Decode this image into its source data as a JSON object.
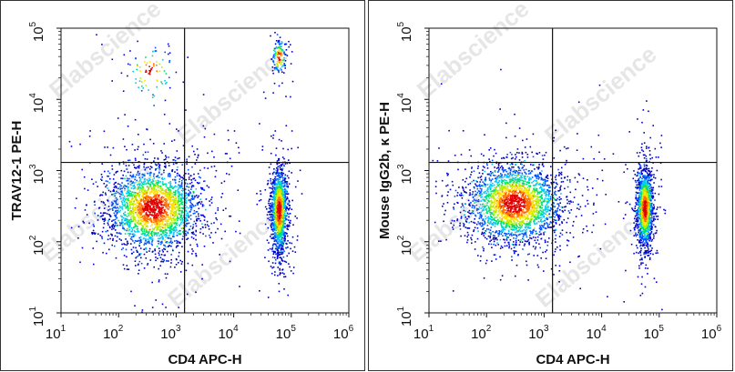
{
  "chart_data": [
    {
      "type": "scatter",
      "xlabel": "CD4 APC-H",
      "ylabel": "TRAV12-1 PE-H",
      "x_scale": "log",
      "y_scale": "log",
      "xlim": [
        10,
        1000000
      ],
      "ylim": [
        10,
        100000
      ],
      "x_ticks": [
        10,
        100,
        1000,
        10000,
        100000,
        1000000
      ],
      "y_ticks": [
        10,
        100,
        1000,
        10000,
        100000
      ],
      "quadrant_gate": {
        "x": 1400,
        "y": 1300
      },
      "watermark": "Elabscience",
      "populations": [
        {
          "name": "",
          "x_center": 400,
          "y_center": 300,
          "x_spread_decades": 0.42,
          "y_spread_decades": 0.3,
          "events": 2600
        },
        {
          "name": "",
          "x_center": 60000,
          "y_center": 280,
          "x_spread_decades": 0.07,
          "y_spread_decades": 0.3,
          "events": 1500
        },
        {
          "name": "",
          "x_center": 60000,
          "y_center": 40000,
          "x_spread_decades": 0.06,
          "y_spread_decades": 0.12,
          "events": 140
        },
        {
          "name": "",
          "x_center": 350,
          "y_center": 25000,
          "x_spread_decades": 0.22,
          "y_spread_decades": 0.2,
          "events": 90
        }
      ]
    },
    {
      "type": "scatter",
      "xlabel": "CD4 APC-H",
      "ylabel": "Mouse IgG2b, κ PE-H",
      "x_scale": "log",
      "y_scale": "log",
      "xlim": [
        10,
        1000000
      ],
      "ylim": [
        10,
        100000
      ],
      "x_ticks": [
        10,
        100,
        1000,
        10000,
        100000,
        1000000
      ],
      "y_ticks": [
        10,
        100,
        1000,
        10000,
        100000
      ],
      "quadrant_gate": {
        "x": 1400,
        "y": 1300
      },
      "watermark": "Elabscience",
      "populations": [
        {
          "name": "",
          "x_center": 300,
          "y_center": 350,
          "x_spread_decades": 0.42,
          "y_spread_decades": 0.28,
          "events": 2600
        },
        {
          "name": "",
          "x_center": 55000,
          "y_center": 300,
          "x_spread_decades": 0.07,
          "y_spread_decades": 0.28,
          "events": 1500
        }
      ]
    }
  ],
  "colors": {
    "density_ramp": [
      "#0000c8",
      "#0050ff",
      "#00c8ff",
      "#00e070",
      "#b0f000",
      "#ffe000",
      "#ff7000",
      "#e00000"
    ],
    "gate_line": "#111111",
    "watermark": "#e6e6e6"
  }
}
